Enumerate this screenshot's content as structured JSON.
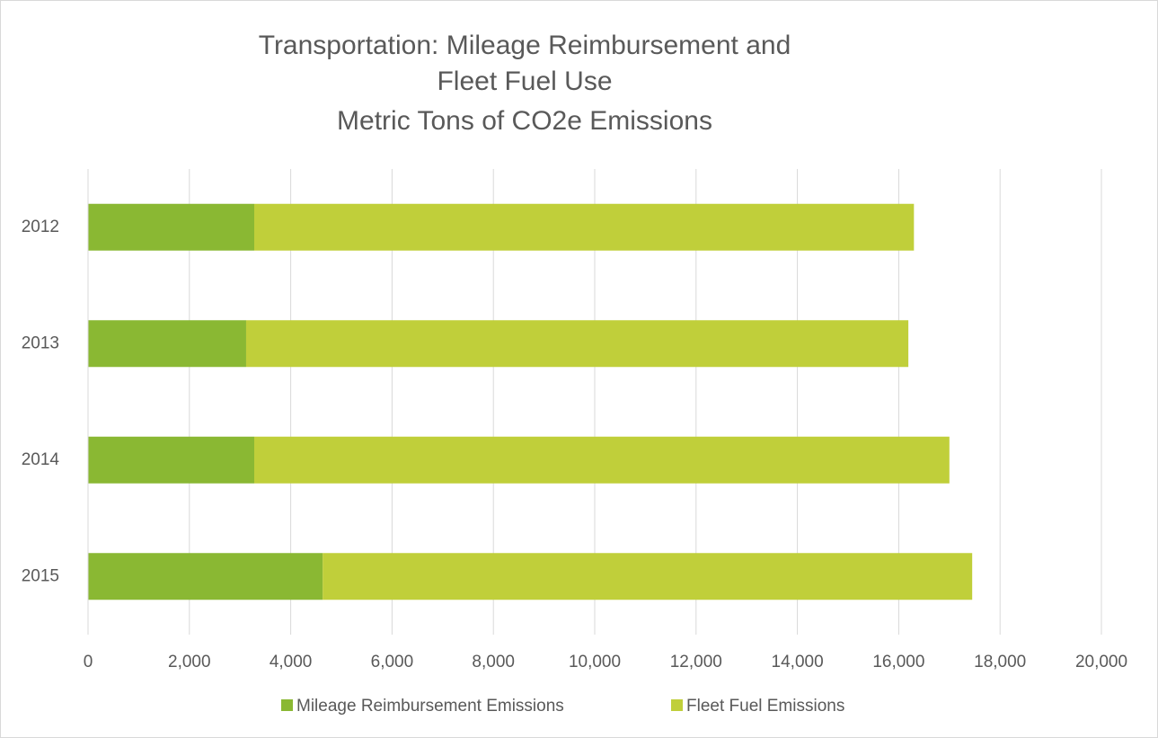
{
  "chart_data": {
    "type": "stacked_bar_horizontal",
    "title": [
      "Transportation: Mileage Reimbursement and",
      "Fleet Fuel Use",
      "Metric Tons of CO2e Emissions"
    ],
    "categories": [
      "2012",
      "2013",
      "2014",
      "2015"
    ],
    "series": [
      {
        "name": "Mileage Reimbursement Emissions",
        "color": "#8ab833",
        "values": [
          3280,
          3120,
          3280,
          4630
        ]
      },
      {
        "name": "Fleet Fuel Emissions",
        "color": "#c0cf3a",
        "values": [
          13020,
          13070,
          13720,
          12820
        ]
      }
    ],
    "xlim": [
      0,
      20000
    ],
    "xticks": [
      0,
      {
        "value": 2000,
        "label": "2,000"
      },
      {
        "value": 4000,
        "label": "4,000"
      },
      {
        "value": 6000,
        "label": "6,000"
      },
      {
        "value": 8000,
        "label": "8,000"
      },
      {
        "value": 10000,
        "label": "10,000"
      },
      {
        "value": 12000,
        "label": "12,000"
      },
      {
        "value": 14000,
        "label": "14,000"
      },
      {
        "value": 16000,
        "label": "16,000"
      },
      {
        "value": 18000,
        "label": "18,000"
      },
      {
        "value": 20000,
        "label": "20,000"
      }
    ],
    "grid": true,
    "legend": "bottom"
  }
}
